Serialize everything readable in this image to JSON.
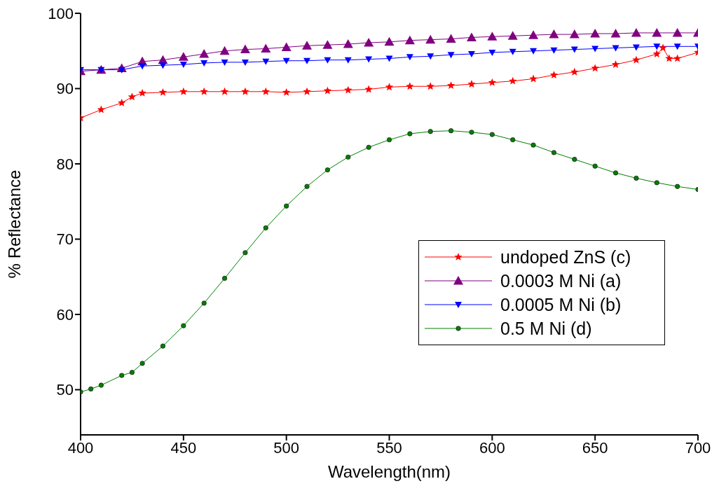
{
  "chart_data": {
    "type": "line",
    "xlabel": "Wavelength(nm)",
    "ylabel": "% Reflectance",
    "xlim": [
      400,
      700
    ],
    "xticks": [
      400,
      450,
      500,
      550,
      600,
      650,
      700
    ],
    "ylim": [
      44,
      100
    ],
    "yticks": [
      50,
      60,
      70,
      80,
      90,
      100
    ],
    "grid": false,
    "legend": "right",
    "series": [
      {
        "name": "undoped ZnS (c)",
        "color": "#ff0000",
        "marker": "star",
        "x": [
          400,
          410,
          420,
          425,
          430,
          440,
          450,
          460,
          470,
          480,
          490,
          500,
          510,
          520,
          530,
          540,
          550,
          560,
          570,
          580,
          590,
          600,
          610,
          620,
          630,
          640,
          650,
          660,
          670,
          680,
          683,
          686,
          690,
          700
        ],
        "values": [
          86.1,
          87.2,
          88.1,
          88.9,
          89.4,
          89.5,
          89.6,
          89.6,
          89.6,
          89.6,
          89.6,
          89.5,
          89.6,
          89.7,
          89.8,
          89.9,
          90.2,
          90.3,
          90.3,
          90.4,
          90.6,
          90.8,
          91.0,
          91.3,
          91.8,
          92.2,
          92.7,
          93.2,
          93.8,
          94.6,
          95.4,
          94.0,
          94.0,
          94.8
        ]
      },
      {
        "name": "0.0003 M Ni (a)",
        "color": "#800080",
        "marker": "triangle",
        "x": [
          400,
          410,
          420,
          430,
          440,
          450,
          460,
          470,
          480,
          490,
          500,
          510,
          520,
          530,
          540,
          550,
          560,
          570,
          580,
          590,
          600,
          610,
          620,
          630,
          640,
          650,
          660,
          670,
          680,
          690,
          700
        ],
        "values": [
          92.3,
          92.5,
          92.7,
          93.6,
          93.8,
          94.2,
          94.6,
          95.0,
          95.2,
          95.3,
          95.5,
          95.7,
          95.8,
          95.9,
          96.1,
          96.2,
          96.4,
          96.5,
          96.6,
          96.8,
          96.9,
          97.0,
          97.1,
          97.2,
          97.2,
          97.3,
          97.3,
          97.4,
          97.4,
          97.4,
          97.4
        ]
      },
      {
        "name": "0.0005 M Ni (b)",
        "color": "#0000ff",
        "marker": "triangle-down",
        "x": [
          400,
          410,
          420,
          430,
          440,
          450,
          460,
          470,
          480,
          490,
          500,
          510,
          520,
          530,
          540,
          550,
          560,
          570,
          580,
          590,
          600,
          610,
          620,
          630,
          640,
          650,
          660,
          670,
          680,
          690,
          700
        ],
        "values": [
          92.5,
          92.5,
          92.5,
          93.0,
          93.1,
          93.2,
          93.4,
          93.5,
          93.5,
          93.6,
          93.7,
          93.7,
          93.8,
          93.8,
          93.9,
          94.0,
          94.2,
          94.3,
          94.5,
          94.6,
          94.8,
          94.9,
          95.0,
          95.1,
          95.2,
          95.3,
          95.4,
          95.5,
          95.6,
          95.6,
          95.6
        ]
      },
      {
        "name": "0.5 M Ni (d)",
        "color": "#008000",
        "marker": "circle",
        "x": [
          400,
          405,
          410,
          420,
          425,
          430,
          440,
          450,
          460,
          470,
          480,
          490,
          500,
          510,
          520,
          530,
          540,
          550,
          560,
          570,
          580,
          590,
          600,
          610,
          620,
          630,
          640,
          650,
          660,
          670,
          680,
          690,
          700
        ],
        "values": [
          49.7,
          50.1,
          50.6,
          51.9,
          52.3,
          53.5,
          55.8,
          58.5,
          61.5,
          64.8,
          68.2,
          71.5,
          74.4,
          77.0,
          79.2,
          80.9,
          82.2,
          83.2,
          84.0,
          84.3,
          84.4,
          84.2,
          83.9,
          83.2,
          82.5,
          81.5,
          80.6,
          79.7,
          78.8,
          78.1,
          77.5,
          77.0,
          76.6
        ]
      }
    ]
  }
}
